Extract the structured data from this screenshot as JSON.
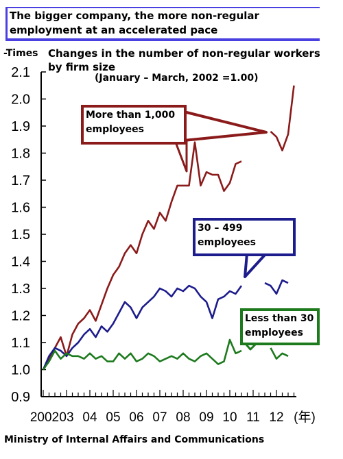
{
  "header": {
    "title": "The bigger company, the more non-regular employment at an accelerated pace",
    "subtitle": "Changes in the number of non-regular workers by firm size",
    "subnote": "(January – March, 2002 =1.00)",
    "y_unit": "-Times"
  },
  "footer": {
    "source": "Ministry of Internal Affairs and Communications"
  },
  "colors": {
    "large": "#8b1a1a",
    "mid": "#1c1c8c",
    "small": "#1d7a1d",
    "title_bg": "#4a3fe0"
  },
  "chart_data": {
    "type": "line",
    "title": "Changes in the number of non-regular workers by firm size",
    "xlabel": "年",
    "ylabel": "-Times",
    "ylim": [
      0.9,
      2.1
    ],
    "yticks": [
      "0.9",
      "1.0",
      "1.1",
      "1.2",
      "1.3",
      "1.4",
      "1.5",
      "1.6",
      "1.7",
      "1.8",
      "1.9",
      "2.0",
      "2.1"
    ],
    "xticks": [
      "2002",
      "03",
      "04",
      "05",
      "06",
      "07",
      "08",
      "09",
      "10",
      "11",
      "12"
    ],
    "x_unit_label": "(年)",
    "series": [
      {
        "name": "More than 1,000 employees",
        "segments": [
          [
            [
              0,
              1.0
            ],
            [
              0.25,
              1.04
            ],
            [
              0.5,
              1.08
            ],
            [
              0.75,
              1.12
            ],
            [
              1.0,
              1.05
            ],
            [
              1.25,
              1.13
            ],
            [
              1.5,
              1.17
            ],
            [
              1.75,
              1.19
            ],
            [
              2.0,
              1.22
            ],
            [
              2.25,
              1.18
            ],
            [
              2.5,
              1.24
            ],
            [
              2.75,
              1.3
            ],
            [
              3.0,
              1.35
            ],
            [
              3.25,
              1.38
            ],
            [
              3.5,
              1.43
            ],
            [
              3.75,
              1.46
            ],
            [
              4.0,
              1.43
            ],
            [
              4.25,
              1.5
            ],
            [
              4.5,
              1.55
            ],
            [
              4.75,
              1.52
            ],
            [
              5.0,
              1.58
            ],
            [
              5.25,
              1.55
            ],
            [
              5.5,
              1.62
            ],
            [
              5.75,
              1.68
            ],
            [
              6.0,
              1.68
            ],
            [
              6.25,
              1.68
            ],
            [
              6.5,
              1.84
            ],
            [
              6.75,
              1.68
            ],
            [
              7.0,
              1.73
            ],
            [
              7.25,
              1.72
            ],
            [
              7.5,
              1.72
            ],
            [
              7.75,
              1.66
            ],
            [
              8.0,
              1.69
            ],
            [
              8.25,
              1.76
            ],
            [
              8.5,
              1.77
            ]
          ],
          [
            [
              9.75,
              1.88
            ],
            [
              10.0,
              1.86
            ],
            [
              10.25,
              1.81
            ],
            [
              10.5,
              1.87
            ],
            [
              10.75,
              2.05
            ]
          ]
        ]
      },
      {
        "name": "30 – 499 employees",
        "segments": [
          [
            [
              0,
              1.0
            ],
            [
              0.25,
              1.05
            ],
            [
              0.5,
              1.08
            ],
            [
              0.75,
              1.07
            ],
            [
              1.0,
              1.05
            ],
            [
              1.25,
              1.08
            ],
            [
              1.5,
              1.1
            ],
            [
              1.75,
              1.13
            ],
            [
              2.0,
              1.15
            ],
            [
              2.25,
              1.12
            ],
            [
              2.5,
              1.16
            ],
            [
              2.75,
              1.14
            ],
            [
              3.0,
              1.17
            ],
            [
              3.25,
              1.21
            ],
            [
              3.5,
              1.25
            ],
            [
              3.75,
              1.23
            ],
            [
              4.0,
              1.19
            ],
            [
              4.25,
              1.23
            ],
            [
              4.5,
              1.25
            ],
            [
              4.75,
              1.27
            ],
            [
              5.0,
              1.3
            ],
            [
              5.25,
              1.29
            ],
            [
              5.5,
              1.27
            ],
            [
              5.75,
              1.3
            ],
            [
              6.0,
              1.29
            ],
            [
              6.25,
              1.31
            ],
            [
              6.5,
              1.3
            ],
            [
              6.75,
              1.27
            ],
            [
              7.0,
              1.25
            ],
            [
              7.25,
              1.19
            ],
            [
              7.5,
              1.26
            ],
            [
              7.75,
              1.27
            ],
            [
              8.0,
              1.29
            ],
            [
              8.25,
              1.28
            ],
            [
              8.5,
              1.31
            ]
          ],
          [
            [
              9.5,
              1.32
            ],
            [
              9.75,
              1.31
            ],
            [
              10.0,
              1.28
            ],
            [
              10.25,
              1.33
            ],
            [
              10.5,
              1.32
            ]
          ]
        ]
      },
      {
        "name": "Less than 30 employees",
        "segments": [
          [
            [
              0,
              1.0
            ],
            [
              0.25,
              1.03
            ],
            [
              0.5,
              1.07
            ],
            [
              0.75,
              1.04
            ],
            [
              1.0,
              1.06
            ],
            [
              1.25,
              1.05
            ],
            [
              1.5,
              1.05
            ],
            [
              1.75,
              1.04
            ],
            [
              2.0,
              1.06
            ],
            [
              2.25,
              1.04
            ],
            [
              2.5,
              1.05
            ],
            [
              2.75,
              1.03
            ],
            [
              3.0,
              1.03
            ],
            [
              3.25,
              1.06
            ],
            [
              3.5,
              1.04
            ],
            [
              3.75,
              1.06
            ],
            [
              4.0,
              1.03
            ],
            [
              4.25,
              1.04
            ],
            [
              4.5,
              1.06
            ],
            [
              4.75,
              1.05
            ],
            [
              5.0,
              1.03
            ],
            [
              5.25,
              1.04
            ],
            [
              5.5,
              1.05
            ],
            [
              5.75,
              1.04
            ],
            [
              6.0,
              1.06
            ],
            [
              6.25,
              1.04
            ],
            [
              6.5,
              1.03
            ],
            [
              6.75,
              1.05
            ],
            [
              7.0,
              1.06
            ],
            [
              7.25,
              1.04
            ],
            [
              7.5,
              1.02
            ],
            [
              7.75,
              1.03
            ],
            [
              8.0,
              1.11
            ],
            [
              8.25,
              1.06
            ],
            [
              8.5,
              1.07
            ]
          ],
          [
            [
              9.75,
              1.08
            ],
            [
              10.0,
              1.04
            ],
            [
              10.25,
              1.06
            ],
            [
              10.5,
              1.05
            ]
          ]
        ]
      }
    ],
    "legend": "callout labels"
  }
}
